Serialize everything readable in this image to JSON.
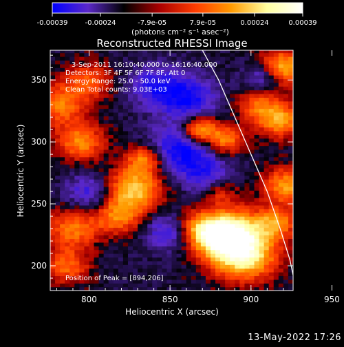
{
  "chart_data": {
    "type": "heatmap",
    "title": "Reconstructed RHESSI Image",
    "xlabel": "Heliocentric X (arcsec)",
    "ylabel": "Heliocentric Y (arcsec)",
    "xlim": [
      776,
      926
    ],
    "ylim": [
      180,
      374
    ],
    "x_ticks": [
      800,
      850,
      900,
      950
    ],
    "y_ticks": [
      200,
      250,
      300,
      350
    ],
    "colorbar": {
      "range": [
        -0.00039,
        0.00039
      ],
      "ticks": [
        "-0.00039",
        "-0.00024",
        "-7.9e-05",
        "7.9e-05",
        "0.00024",
        "0.00039"
      ],
      "unit_label": "(photons cm⁻² s⁻¹ asec⁻²)",
      "colors": [
        "#0000ff",
        "#5b28c8",
        "#000000",
        "#aa0000",
        "#ff3c00",
        "#ff9a00",
        "#ffffa0",
        "#ffffff"
      ]
    },
    "annotations": [
      "3-Sep-2011 16:10:40.000 to 16:16:40.000",
      "Detectors: 3F 4F 5F 6F 7F 8F, Att 0",
      "Energy Range: 25.0 - 50.0 keV",
      "Clean     Total counts: 9.03E+03"
    ],
    "peak_label": "Position of Peak = [894,206]",
    "peak_position": [
      894,
      206
    ],
    "limb_curve": [
      [
        870,
        374
      ],
      [
        880,
        350
      ],
      [
        890,
        320
      ],
      [
        900,
        290
      ],
      [
        910,
        260
      ],
      [
        918,
        230
      ],
      [
        924,
        205
      ],
      [
        928,
        180
      ]
    ],
    "sources": [
      {
        "x": 895,
        "y": 210,
        "amp": 1.0,
        "s": 14
      },
      {
        "x": 888,
        "y": 230,
        "amp": 0.7,
        "s": 12
      },
      {
        "x": 878,
        "y": 222,
        "amp": 0.6,
        "s": 10
      },
      {
        "x": 828,
        "y": 262,
        "amp": 0.72,
        "s": 12
      },
      {
        "x": 818,
        "y": 240,
        "amp": 0.5,
        "s": 10
      },
      {
        "x": 834,
        "y": 286,
        "amp": 0.55,
        "s": 8
      },
      {
        "x": 790,
        "y": 230,
        "amp": 0.5,
        "s": 11
      },
      {
        "x": 786,
        "y": 200,
        "amp": 0.45,
        "s": 10
      },
      {
        "x": 795,
        "y": 300,
        "amp": 0.55,
        "s": 10
      },
      {
        "x": 782,
        "y": 330,
        "amp": 0.5,
        "s": 12
      },
      {
        "x": 800,
        "y": 350,
        "amp": 0.4,
        "s": 10
      },
      {
        "x": 868,
        "y": 310,
        "amp": 0.75,
        "s": 8
      },
      {
        "x": 884,
        "y": 302,
        "amp": 0.55,
        "s": 8
      },
      {
        "x": 920,
        "y": 360,
        "amp": 0.7,
        "s": 10
      },
      {
        "x": 918,
        "y": 318,
        "amp": 0.6,
        "s": 10
      },
      {
        "x": 922,
        "y": 265,
        "amp": 0.6,
        "s": 10
      },
      {
        "x": 915,
        "y": 235,
        "amp": 0.55,
        "s": 9
      },
      {
        "x": 868,
        "y": 232,
        "amp": 0.45,
        "s": 9
      },
      {
        "x": 904,
        "y": 330,
        "amp": 0.4,
        "s": 9
      },
      {
        "x": 880,
        "y": 260,
        "amp": 0.3,
        "s": 8
      }
    ],
    "dips": [
      {
        "x": 858,
        "y": 295,
        "amp": 0.55,
        "s": 14
      },
      {
        "x": 862,
        "y": 335,
        "amp": 0.45,
        "s": 12
      },
      {
        "x": 842,
        "y": 345,
        "amp": 0.4,
        "s": 12
      },
      {
        "x": 908,
        "y": 352,
        "amp": 0.4,
        "s": 8
      },
      {
        "x": 800,
        "y": 260,
        "amp": 0.35,
        "s": 10
      },
      {
        "x": 848,
        "y": 228,
        "amp": 0.35,
        "s": 10
      },
      {
        "x": 872,
        "y": 272,
        "amp": 0.35,
        "s": 10
      }
    ]
  },
  "footer": {
    "timestamp": "13-May-2022 17:26"
  }
}
